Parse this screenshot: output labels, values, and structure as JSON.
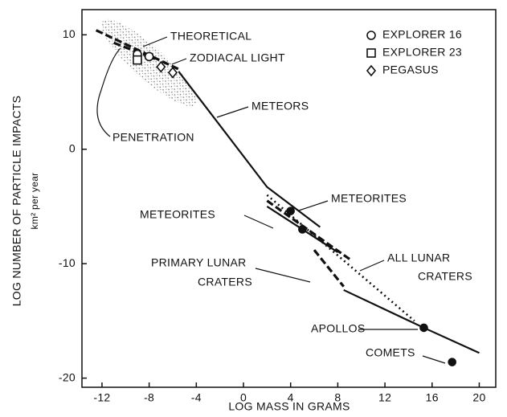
{
  "chart_data": {
    "type": "line",
    "x_label": "LOG MASS IN GRAMS",
    "y_label": "LOG NUMBER OF PARTICLE IMPACTS",
    "y_sublabel": "km² per year",
    "xlim": [
      -13.7,
      21.4
    ],
    "ylim": [
      -20.8,
      12.2
    ],
    "xticks": [
      -12,
      -8,
      -4,
      0,
      4,
      8,
      12,
      16,
      20
    ],
    "yticks": [
      10,
      0,
      -10,
      -20
    ],
    "color": "#111111",
    "series": [
      {
        "style": "dashed",
        "x": [
          -12.5,
          -5.5
        ],
        "values": [
          10.4,
          7.0
        ]
      },
      {
        "style": "dashed",
        "x": [
          -11,
          -7.5
        ],
        "values": [
          9.3,
          7.9
        ]
      },
      {
        "style": "solid",
        "x": [
          -5.5,
          2,
          6.5
        ],
        "values": [
          6.8,
          -3.3,
          -6.8
        ]
      },
      {
        "style": "solid",
        "x": [
          2,
          5,
          8
        ],
        "values": [
          -5,
          -7,
          -9
        ]
      },
      {
        "style": "dashed",
        "x": [
          2,
          9
        ],
        "values": [
          -4.5,
          -9.6
        ]
      },
      {
        "style": "dotted",
        "x": [
          2,
          14.5
        ],
        "values": [
          -4,
          -15
        ]
      },
      {
        "style": "dashed",
        "x": [
          6,
          8.5
        ],
        "values": [
          -8.8,
          -12
        ]
      },
      {
        "style": "solid",
        "x": [
          8.5,
          15.3,
          20
        ],
        "values": [
          -12.3,
          -15.6,
          -17.8
        ]
      }
    ],
    "points": [
      {
        "name": "EXPLORER 16",
        "marker": "circle",
        "x": [
          -9,
          -8
        ],
        "values": [
          8.3,
          8.1
        ]
      },
      {
        "name": "EXPLORER 23",
        "marker": "square",
        "x": [
          -9
        ],
        "values": [
          7.8
        ]
      },
      {
        "name": "PEGASUS",
        "marker": "diamond",
        "x": [
          -7,
          -6
        ],
        "values": [
          7.2,
          6.7
        ]
      },
      {
        "marker": "dot",
        "x": [
          4,
          5,
          15.3,
          17.7
        ],
        "values": [
          -5.4,
          -7,
          -15.6,
          -18.6
        ]
      }
    ],
    "annotations": [
      "THEORETICAL",
      "ZODIACAL LIGHT",
      "METEORS",
      "PENETRATION",
      "METEORITES",
      "METEORITES",
      "PRIMARY LUNAR",
      "CRATERS",
      "ALL LUNAR",
      "CRATERS",
      "APOLLOS",
      "COMETS"
    ]
  }
}
